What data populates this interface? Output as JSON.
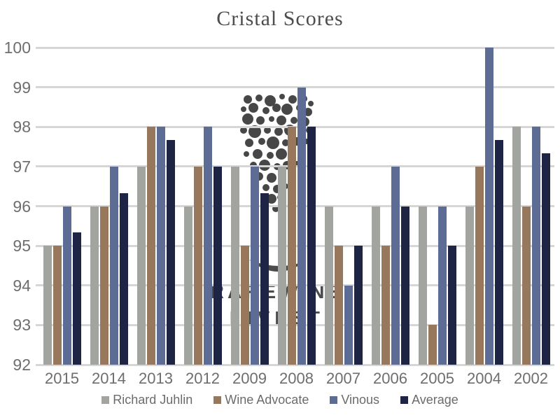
{
  "page": {
    "background": "#ffffff"
  },
  "chart_data": {
    "type": "bar",
    "title": "Cristal Scores",
    "categories": [
      "2015",
      "2014",
      "2013",
      "2012",
      "2009",
      "2008",
      "2007",
      "2006",
      "2005",
      "2004",
      "2002"
    ],
    "series": [
      {
        "name": "Richard Juhlin",
        "color": "#a2a4a0",
        "values": [
          95,
          96,
          97,
          96,
          97,
          97,
          96,
          96,
          96,
          96,
          98
        ]
      },
      {
        "name": "Wine Advocate",
        "color": "#97785c",
        "values": [
          95,
          96,
          98,
          97,
          95,
          98,
          95,
          95,
          93,
          97,
          96
        ]
      },
      {
        "name": "Vinous",
        "color": "#5d6c94",
        "values": [
          96,
          97,
          98,
          98,
          97,
          99,
          94,
          97,
          96,
          100,
          98
        ]
      },
      {
        "name": "Average",
        "color": "#1d2444",
        "values": [
          95.33,
          96.33,
          97.67,
          97,
          96.33,
          98,
          95,
          96,
          95,
          97.67,
          97.33
        ]
      }
    ],
    "ylim": [
      92,
      100
    ],
    "ytick_step": 1,
    "grid": true,
    "legend_position": "bottom",
    "xlabel": "",
    "ylabel": "",
    "title_color": "#4d4d4d",
    "axis_label_color": "#6e6e6e",
    "gridline_color": "#d6d6d6"
  },
  "watermark": {
    "line1": "RAREWINE",
    "line2": "INVEST",
    "color": "#3c3c3c"
  }
}
